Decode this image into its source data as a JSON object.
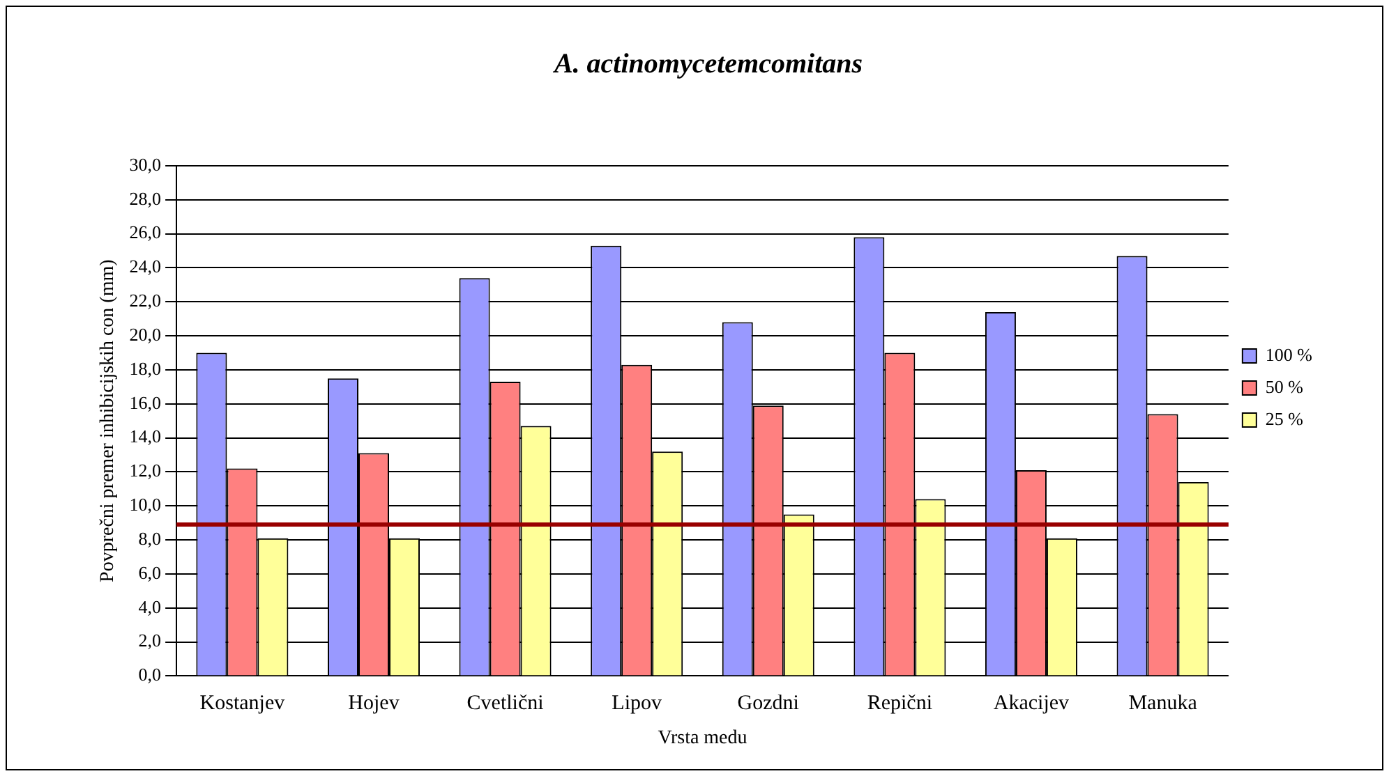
{
  "chart_data": {
    "type": "bar",
    "title": "A. actinomycetemcomitans",
    "xlabel": "Vrsta medu",
    "ylabel": "Povprečni premer inhibicijskih con (mm)",
    "categories": [
      "Kostanjev",
      "Hojev",
      "Cvetlični",
      "Lipov",
      "Gozdni",
      "Repični",
      "Akacijev",
      "Manuka"
    ],
    "series": [
      {
        "name": "100 %",
        "color": "#9999ff",
        "values": [
          19.0,
          17.5,
          23.4,
          25.3,
          20.8,
          25.8,
          21.4,
          24.7
        ]
      },
      {
        "name": "50 %",
        "color": "#ff8080",
        "values": [
          12.2,
          13.1,
          17.3,
          18.3,
          15.9,
          19.0,
          12.1,
          15.4
        ]
      },
      {
        "name": "25 %",
        "color": "#ffff99",
        "values": [
          8.1,
          8.1,
          14.7,
          13.2,
          9.5,
          10.4,
          8.1,
          11.4
        ]
      }
    ],
    "ylim": [
      0,
      30
    ],
    "yticks": [
      {
        "value": 0,
        "label": "0,0"
      },
      {
        "value": 2,
        "label": "2,0"
      },
      {
        "value": 4,
        "label": "4,0"
      },
      {
        "value": 6,
        "label": "6,0"
      },
      {
        "value": 8,
        "label": "8,0"
      },
      {
        "value": 10,
        "label": "10,0"
      },
      {
        "value": 12,
        "label": "12,0"
      },
      {
        "value": 14,
        "label": "14,0"
      },
      {
        "value": 16,
        "label": "16,0"
      },
      {
        "value": 18,
        "label": "18,0"
      },
      {
        "value": 20,
        "label": "20,0"
      },
      {
        "value": 22,
        "label": "22,0"
      },
      {
        "value": 24,
        "label": "24,0"
      },
      {
        "value": 26,
        "label": "26,0"
      },
      {
        "value": 28,
        "label": "28,0"
      },
      {
        "value": 30,
        "label": "30,0"
      }
    ],
    "ref_lines": [
      {
        "axis": "y",
        "value": 8.9,
        "color": "#990000"
      }
    ],
    "grid": "y",
    "legend": "right"
  }
}
